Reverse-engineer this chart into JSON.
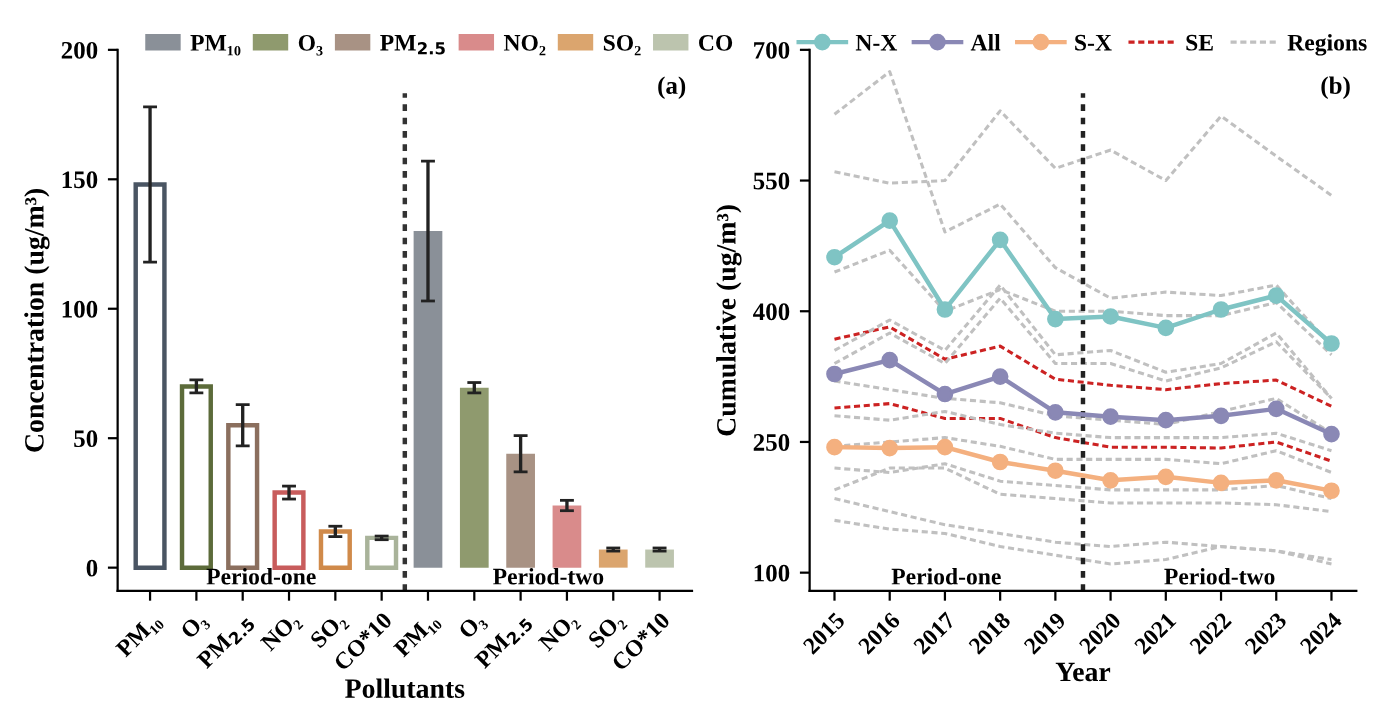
{
  "chart_data": [
    {
      "type": "bar",
      "ylabel": "Concentration (ug/m³)",
      "xlabel": "Pollutants",
      "categories": [
        "PM₁₀",
        "O₃",
        "PM$_{2.5}$",
        "NO₂",
        "SO₂",
        "CO*10",
        "PM₁₀",
        "O₃",
        "PM$_{2.5}$",
        "NO₂",
        "SO₂",
        "CO*10"
      ],
      "series": [
        {
          "name": "PM₁₀",
          "color": "#8a9098",
          "colors": [
            "#4a5563",
            null,
            null,
            null,
            null,
            null,
            "#8a9098",
            null,
            null,
            null,
            null,
            null
          ],
          "values": [
            148,
            null,
            null,
            null,
            null,
            null,
            130,
            null,
            null,
            null,
            null,
            null
          ],
          "errors": [
            30,
            null,
            null,
            null,
            null,
            null,
            27,
            null,
            null,
            null,
            null,
            null
          ]
        },
        {
          "name": "O₃",
          "color": "#8f9a6e",
          "colors": [
            null,
            "#5c6b3a",
            null,
            null,
            null,
            null,
            null,
            "#8f9a6e",
            null,
            null,
            null,
            null
          ],
          "values": [
            null,
            70,
            null,
            null,
            null,
            null,
            null,
            69.5,
            null,
            null,
            null,
            null
          ],
          "errors": [
            null,
            2.5,
            null,
            null,
            null,
            null,
            null,
            2,
            null,
            null,
            null,
            null
          ]
        },
        {
          "name": "PM$_{2.5}$",
          "color": "#a89284",
          "colors": [
            null,
            null,
            "#8b6f5e",
            null,
            null,
            null,
            null,
            null,
            "#a89284",
            null,
            null,
            null
          ],
          "values": [
            null,
            null,
            55,
            null,
            null,
            null,
            null,
            null,
            44,
            null,
            null,
            null
          ],
          "errors": [
            null,
            null,
            8,
            null,
            null,
            null,
            null,
            null,
            7,
            null,
            null,
            null
          ]
        },
        {
          "name": "NO₂",
          "color": "#d98b8b",
          "colors": [
            null,
            null,
            null,
            "#c85c5c",
            null,
            null,
            null,
            null,
            null,
            "#d98b8b",
            null,
            null
          ],
          "values": [
            null,
            null,
            null,
            29,
            null,
            null,
            null,
            null,
            null,
            24,
            null,
            null
          ],
          "errors": [
            null,
            null,
            null,
            2.5,
            null,
            null,
            null,
            null,
            null,
            2,
            null,
            null
          ]
        },
        {
          "name": "SO₂",
          "color": "#dba56e",
          "colors": [
            null,
            null,
            null,
            null,
            "#d08a4a",
            null,
            null,
            null,
            null,
            null,
            "#dba56e",
            null
          ],
          "values": [
            null,
            null,
            null,
            null,
            14,
            null,
            null,
            null,
            null,
            null,
            7,
            null
          ],
          "errors": [
            null,
            null,
            null,
            null,
            2,
            null,
            null,
            null,
            null,
            null,
            0.6,
            null
          ]
        },
        {
          "name": "CO",
          "color": "#bcc4ae",
          "colors": [
            null,
            null,
            null,
            null,
            null,
            "#a9b39a",
            null,
            null,
            null,
            null,
            null,
            "#bcc4ae"
          ],
          "values": [
            null,
            null,
            null,
            null,
            null,
            11.5,
            null,
            null,
            null,
            null,
            null,
            7
          ],
          "errors": [
            null,
            null,
            null,
            null,
            null,
            0.7,
            null,
            null,
            null,
            null,
            null,
            0.6
          ]
        }
      ],
      "ylim": [
        -9,
        200
      ],
      "yticks": [
        0,
        50,
        100,
        150,
        200
      ],
      "annotations": [
        "Period-one",
        "Period-two",
        "(a)"
      ],
      "legend": "top",
      "grid": false
    },
    {
      "type": "line",
      "ylabel": "Cumulative (ug/m³)",
      "xlabel": "Year",
      "x": [
        2015,
        2016,
        2017,
        2018,
        2019,
        2020,
        2021,
        2022,
        2023,
        2024
      ],
      "series": [
        {
          "name": "N-X",
          "color": "#7fc4c4",
          "marker": "circle",
          "line_style": "solid",
          "values": [
            462,
            504,
            402,
            482,
            391,
            394,
            381,
            402,
            418,
            363
          ]
        },
        {
          "name": "All",
          "color": "#8a88b5",
          "marker": "circle",
          "line_style": "solid",
          "values": [
            328,
            344,
            305,
            325,
            284,
            279,
            275,
            280,
            288,
            259
          ]
        },
        {
          "name": "S-X",
          "color": "#f4b07f",
          "marker": "circle",
          "line_style": "solid",
          "values": [
            244,
            243,
            244,
            227,
            217,
            206,
            210,
            203,
            206,
            194
          ]
        },
        {
          "name": "SE",
          "color": "#cc2222",
          "marker": "none",
          "line_style": "dashed",
          "values": [
            368,
            382,
            345,
            360,
            322,
            315,
            310,
            317,
            321,
            291
          ]
        },
        {
          "color": "#cc2222",
          "marker": "none",
          "line_style": "dashed",
          "values": [
            289,
            294,
            277,
            277,
            255,
            244,
            244,
            243,
            250,
            228
          ]
        },
        {
          "name": "Regions",
          "color": "#c0c0c0",
          "marker": "none",
          "line_style": "dashed",
          "values": [
            626,
            675,
            491,
            523,
            450,
            415,
            422,
            418,
            430,
            360
          ]
        },
        {
          "color": "#c0c0c0",
          "marker": "none",
          "line_style": "dashed",
          "values": [
            560,
            547,
            550,
            630,
            564,
            585,
            550,
            624,
            578,
            533
          ]
        },
        {
          "color": "#c0c0c0",
          "marker": "none",
          "line_style": "dashed",
          "values": [
            445,
            470,
            400,
            425,
            400,
            400,
            395,
            395,
            410,
            350
          ]
        },
        {
          "color": "#c0c0c0",
          "marker": "none",
          "line_style": "dashed",
          "values": [
            355,
            390,
            355,
            430,
            350,
            355,
            330,
            340,
            375,
            300
          ]
        },
        {
          "color": "#c0c0c0",
          "marker": "none",
          "line_style": "dashed",
          "values": [
            340,
            375,
            340,
            415,
            340,
            340,
            320,
            335,
            365,
            300
          ]
        },
        {
          "color": "#c0c0c0",
          "marker": "none",
          "line_style": "dashed",
          "values": [
            320,
            310,
            300,
            295,
            280,
            275,
            270,
            285,
            300,
            260
          ]
        },
        {
          "color": "#c0c0c0",
          "marker": "none",
          "line_style": "dashed",
          "values": [
            280,
            275,
            285,
            270,
            260,
            255,
            255,
            255,
            260,
            240
          ]
        },
        {
          "color": "#c0c0c0",
          "marker": "none",
          "line_style": "dashed",
          "values": [
            245,
            250,
            255,
            245,
            230,
            230,
            230,
            225,
            240,
            215
          ]
        },
        {
          "color": "#c0c0c0",
          "marker": "none",
          "line_style": "dashed",
          "values": [
            220,
            215,
            225,
            205,
            200,
            195,
            195,
            195,
            200,
            185
          ]
        },
        {
          "color": "#c0c0c0",
          "marker": "none",
          "line_style": "dashed",
          "values": [
            195,
            220,
            220,
            190,
            185,
            180,
            180,
            180,
            178,
            170
          ]
        },
        {
          "color": "#c0c0c0",
          "marker": "none",
          "line_style": "dashed",
          "values": [
            185,
            170,
            155,
            145,
            135,
            130,
            135,
            130,
            125,
            115
          ]
        },
        {
          "color": "#c0c0c0",
          "marker": "none",
          "line_style": "dashed",
          "values": [
            160,
            150,
            145,
            130,
            120,
            110,
            115,
            130,
            125,
            110
          ]
        }
      ],
      "xlim": [
        2014.55,
        2024.45
      ],
      "xticks": [
        2015,
        2016,
        2017,
        2018,
        2019,
        2020,
        2021,
        2022,
        2023,
        2024
      ],
      "ylim": [
        79,
        700
      ],
      "yticks": [
        100,
        250,
        400,
        550,
        700
      ],
      "ref_lines": [
        {
          "axis": "x",
          "value": 2019.5,
          "color": "#222222",
          "line_style": "dotted"
        }
      ],
      "annotations": [
        "Period-one",
        "Period-two",
        "(b)"
      ],
      "legend": "top",
      "grid": false
    }
  ]
}
